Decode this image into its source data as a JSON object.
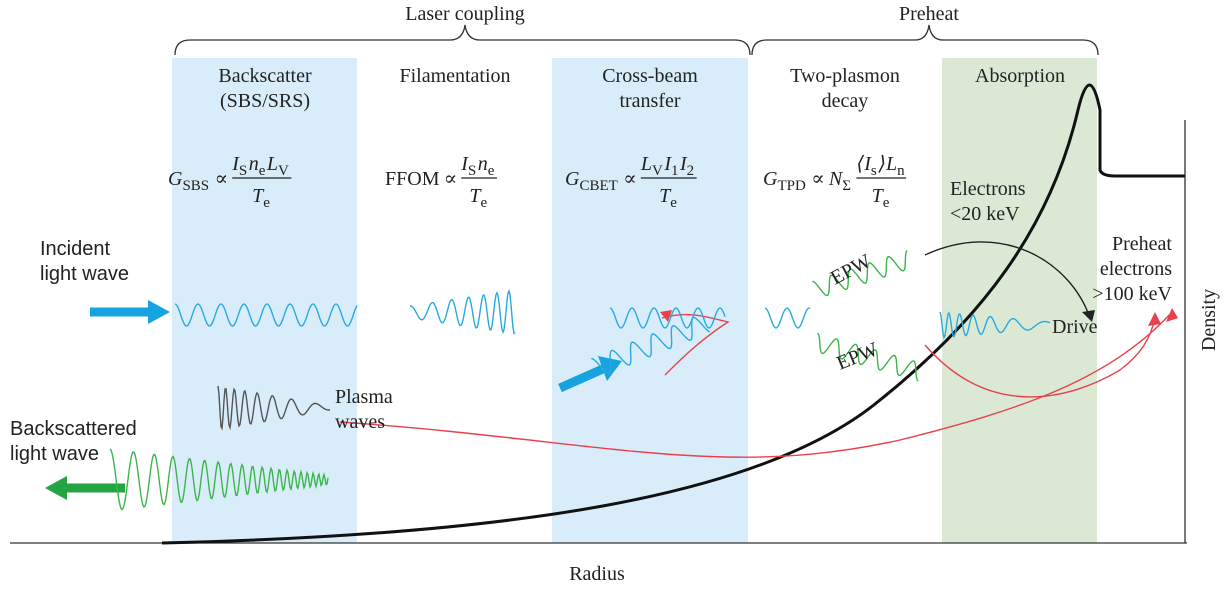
{
  "braces": [
    {
      "label": "Laser coupling"
    },
    {
      "label": "Preheat"
    }
  ],
  "columns": [
    {
      "title": [
        "Backscatter",
        "(SBS/SRS)"
      ],
      "formula": {
        "lhs": [
          {
            "base": "G",
            "sub": "SBS"
          }
        ],
        "relation": "∝",
        "num": [
          {
            "base": "I",
            "sub": "S"
          },
          {
            "base": "n",
            "sub": "e"
          },
          {
            "base": "L",
            "sub": "V"
          }
        ],
        "den": [
          {
            "base": "T",
            "sub": "e"
          }
        ]
      }
    },
    {
      "title": [
        "Filamentation"
      ],
      "formula": {
        "lhs": [
          {
            "base": "FFOM"
          }
        ],
        "relation": "∝",
        "num": [
          {
            "base": "I",
            "sub": "S"
          },
          {
            "base": "n",
            "sub": "e"
          }
        ],
        "den": [
          {
            "base": "T",
            "sub": "e"
          }
        ]
      }
    },
    {
      "title": [
        "Cross-beam",
        "transfer"
      ],
      "formula": {
        "lhs": [
          {
            "base": "G",
            "sub": "CBET"
          }
        ],
        "relation": "∝",
        "num": [
          {
            "base": "L",
            "sub": "V"
          },
          {
            "base": "I",
            "sub": "1"
          },
          {
            "base": "I",
            "sub": "2"
          }
        ],
        "den": [
          {
            "base": "T",
            "sub": "e"
          }
        ]
      }
    },
    {
      "title": [
        "Two-plasmon",
        "decay"
      ],
      "formula": {
        "lhs": [
          {
            "base": "G",
            "sub": "TPD"
          }
        ],
        "relation": "∝",
        "pre": [
          {
            "base": "N",
            "sub": "Σ"
          }
        ],
        "num": [
          {
            "base": "⟨I",
            "sub": "s"
          },
          {
            "base": "⟩L",
            "sub": "n"
          }
        ],
        "den": [
          {
            "base": "T",
            "sub": "e"
          }
        ]
      }
    },
    {
      "title": [
        "Absorption"
      ]
    }
  ],
  "labels": {
    "incident": [
      "Incident",
      "light wave"
    ],
    "backscattered": [
      "Backscattered",
      "light wave"
    ],
    "plasma_waves": [
      "Plasma",
      "waves"
    ],
    "epw_upper": "EPW",
    "epw_lower": "EPW",
    "electrons_low": [
      "Electrons",
      "<20 keV"
    ],
    "preheat_electrons": [
      "Preheat",
      "electrons",
      ">100 keV"
    ],
    "drive": "Drive"
  },
  "axes": {
    "x": "Radius",
    "y": "Density"
  }
}
